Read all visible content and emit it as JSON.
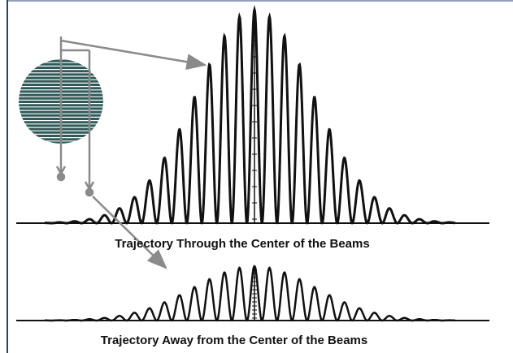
{
  "captions": {
    "top": "Trajectory Through the Center of the Beams",
    "bottom": "Trajectory Away from the Center of the Beams"
  }
}
